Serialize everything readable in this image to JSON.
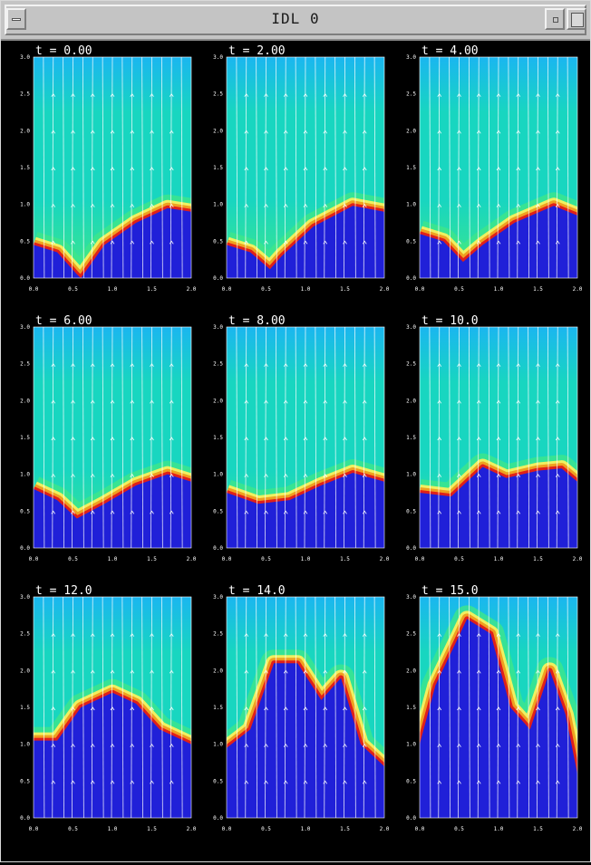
{
  "window": {
    "title": "IDL 0"
  },
  "panels": [
    {
      "time_label": "t = 0.00",
      "interface": [
        [
          0.0,
          0.45
        ],
        [
          0.3,
          0.35
        ],
        [
          0.55,
          0.05
        ],
        [
          0.6,
          0.0
        ],
        [
          0.9,
          0.45
        ],
        [
          1.3,
          0.75
        ],
        [
          1.7,
          0.95
        ],
        [
          2.0,
          0.9
        ]
      ],
      "x_ticks": [
        "0.0",
        "0.5",
        "1.0",
        "1.5",
        "2.0"
      ]
    },
    {
      "time_label": "t = 2.00",
      "interface": [
        [
          0.0,
          0.45
        ],
        [
          0.3,
          0.35
        ],
        [
          0.55,
          0.12
        ],
        [
          0.7,
          0.3
        ],
        [
          1.1,
          0.7
        ],
        [
          1.6,
          0.98
        ],
        [
          2.0,
          0.9
        ]
      ],
      "x_ticks": [
        "0.0",
        "0.5",
        "1.0",
        "1.5",
        "2.0"
      ]
    },
    {
      "time_label": "t = 4.00",
      "interface": [
        [
          0.0,
          0.6
        ],
        [
          0.3,
          0.5
        ],
        [
          0.55,
          0.22
        ],
        [
          0.8,
          0.45
        ],
        [
          1.2,
          0.75
        ],
        [
          1.7,
          0.98
        ],
        [
          2.0,
          0.85
        ]
      ],
      "x_ticks": [
        "0.0",
        "0.5",
        "1.0",
        "1.5",
        "2.0"
      ]
    },
    {
      "time_label": "t = 6.00",
      "interface": [
        [
          0.0,
          0.8
        ],
        [
          0.3,
          0.65
        ],
        [
          0.55,
          0.4
        ],
        [
          0.9,
          0.6
        ],
        [
          1.3,
          0.85
        ],
        [
          1.7,
          1.0
        ],
        [
          2.0,
          0.9
        ]
      ],
      "x_ticks": [
        "0.0",
        "0.5",
        "1.0",
        "1.5",
        "2.0"
      ]
    },
    {
      "time_label": "t = 8.00",
      "interface": [
        [
          0.0,
          0.75
        ],
        [
          0.4,
          0.6
        ],
        [
          0.8,
          0.65
        ],
        [
          1.2,
          0.85
        ],
        [
          1.6,
          1.02
        ],
        [
          2.0,
          0.9
        ]
      ],
      "x_ticks": [
        "0.0",
        "0.5",
        "1.0",
        "1.5",
        "2.0"
      ]
    },
    {
      "time_label": "t = 10.0",
      "interface": [
        [
          0.0,
          0.75
        ],
        [
          0.4,
          0.7
        ],
        [
          0.8,
          1.1
        ],
        [
          1.1,
          0.95
        ],
        [
          1.5,
          1.05
        ],
        [
          1.8,
          1.08
        ],
        [
          2.0,
          0.9
        ]
      ],
      "x_ticks": [
        "0.0",
        "0.5",
        "1.0",
        "1.5",
        "2.0"
      ]
    },
    {
      "time_label": "t = 12.0",
      "interface": [
        [
          0.0,
          1.05
        ],
        [
          0.3,
          1.05
        ],
        [
          0.6,
          1.5
        ],
        [
          1.0,
          1.7
        ],
        [
          1.3,
          1.55
        ],
        [
          1.6,
          1.2
        ],
        [
          2.0,
          1.0
        ]
      ],
      "x_ticks": [
        "0.0",
        "0.5",
        "1.0",
        "1.5",
        "2.0"
      ]
    },
    {
      "time_label": "t = 14.0",
      "interface": [
        [
          0.0,
          0.95
        ],
        [
          0.3,
          1.2
        ],
        [
          0.6,
          2.1
        ],
        [
          0.9,
          2.1
        ],
        [
          1.2,
          1.6
        ],
        [
          1.45,
          1.9
        ],
        [
          1.7,
          1.0
        ],
        [
          2.0,
          0.7
        ]
      ],
      "x_ticks": [
        "0.0",
        "0.5",
        "1.0",
        "1.5",
        "2.0"
      ]
    },
    {
      "time_label": "t = 15.0",
      "interface": [
        [
          0.0,
          1.0
        ],
        [
          0.2,
          1.8
        ],
        [
          0.6,
          2.7
        ],
        [
          0.9,
          2.5
        ],
        [
          1.15,
          1.5
        ],
        [
          1.4,
          1.2
        ],
        [
          1.65,
          2.0
        ],
        [
          1.85,
          1.4
        ],
        [
          2.0,
          0.6
        ]
      ],
      "x_ticks": [
        "0.0",
        "0.5",
        "1.0",
        "1.5",
        "2.0"
      ]
    }
  ],
  "y_ticks": [
    "0.0",
    "0.5",
    "1.0",
    "1.5",
    "2.0",
    "2.5",
    "3.0"
  ],
  "colors": {
    "background": "#000000",
    "field_high": "#18d6c0",
    "field_mid": "#3ee68a",
    "field_top": "#1ab6f0",
    "lower_fluid": "#2020d8",
    "interface_hot": "#e0201a",
    "interface_warm": "#f0a020",
    "interface_yellow": "#f0f060",
    "arrows": "#ffffff"
  }
}
